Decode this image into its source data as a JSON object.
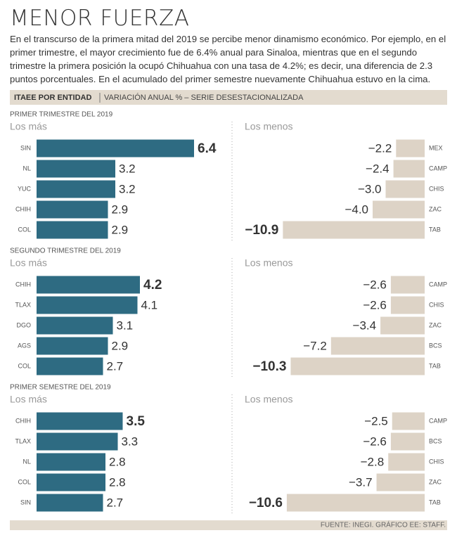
{
  "title": "MENOR FUERZA",
  "intro": "En el transcurso de la primera mitad del 2019 se percibe menor dinamismo económico. Por ejemplo, en el primer trimestre, el mayor crecimiento fue de 6.4% anual para Sinaloa, mientras que en el segundo trimestre la primera posición la ocupó Chihuahua con una tasa de 4.2%; es decir, una diferencia de 2.3 puntos porcentuales. En el acumulado del primer semestre nuevamente Chihuahua estuvo en la cima.",
  "header": {
    "bold": "ITAEE POR ENTIDAD",
    "rest": "VARIACIÓN ANUAL % – SERIE DESESTACIONALIZADA"
  },
  "source": "FUENTE: INEGI. GRÁFICO EE: STAFF.",
  "chart_data": [
    {
      "type": "bar",
      "title": "PRIMER TRIMESTRE DEL 2019",
      "series": [
        {
          "name": "Los más",
          "color": "#2e6b82",
          "categories": [
            "SIN",
            "NL",
            "YUC",
            "CHIH",
            "COL"
          ],
          "values": [
            6.4,
            3.2,
            3.2,
            2.9,
            2.9
          ]
        },
        {
          "name": "Los menos",
          "color": "#ddd3c6",
          "categories": [
            "MEX",
            "CAMP",
            "CHIS",
            "ZAC",
            "TAB"
          ],
          "values": [
            -2.2,
            -2.4,
            -3.0,
            -4.0,
            -10.9
          ],
          "value_labels": [
            "−2.2",
            "−2.4",
            "−3.0",
            "−4.0",
            "−10.9"
          ]
        }
      ]
    },
    {
      "type": "bar",
      "title": "SEGUNDO TRIMESTRE DEL 2019",
      "series": [
        {
          "name": "Los más",
          "color": "#2e6b82",
          "categories": [
            "CHIH",
            "TLAX",
            "DGO",
            "AGS",
            "COL"
          ],
          "values": [
            4.2,
            4.1,
            3.1,
            2.9,
            2.7
          ]
        },
        {
          "name": "Los menos",
          "color": "#ddd3c6",
          "categories": [
            "CAMP",
            "CHIS",
            "ZAC",
            "BCS",
            "TAB"
          ],
          "values": [
            -2.6,
            -2.6,
            -3.4,
            -7.2,
            -10.3
          ],
          "value_labels": [
            "−2.6",
            "−2.6",
            "−3.4",
            "−7.2",
            "−10.3"
          ]
        }
      ]
    },
    {
      "type": "bar",
      "title": "PRIMER SEMESTRE DEL 2019",
      "series": [
        {
          "name": "Los más",
          "color": "#2e6b82",
          "categories": [
            "CHIH",
            "TLAX",
            "NL",
            "COL",
            "SIN"
          ],
          "values": [
            3.5,
            3.3,
            2.8,
            2.8,
            2.7
          ]
        },
        {
          "name": "Los menos",
          "color": "#ddd3c6",
          "categories": [
            "CAMP",
            "BCS",
            "CHIS",
            "ZAC",
            "TAB"
          ],
          "values": [
            -2.5,
            -2.6,
            -2.8,
            -3.7,
            -10.6
          ],
          "value_labels": [
            "−2.5",
            "−2.6",
            "−2.8",
            "−3.7",
            "−10.6"
          ]
        }
      ]
    }
  ]
}
